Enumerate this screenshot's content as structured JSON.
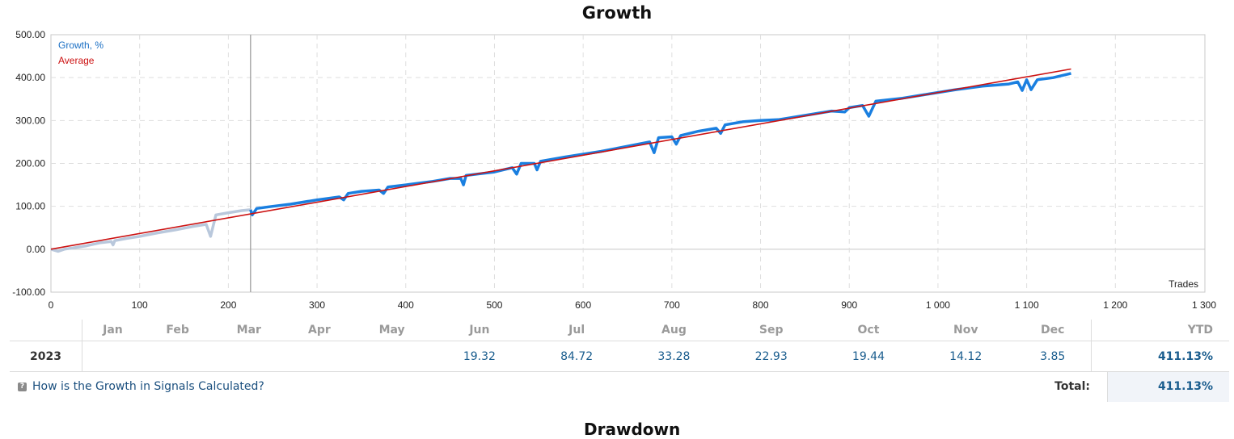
{
  "chart_data": {
    "type": "line",
    "title": "Growth",
    "xlabel": "Trades",
    "ylabel": "",
    "xlim": [
      0,
      1300
    ],
    "ylim": [
      -100,
      500
    ],
    "x_ticks": [
      0,
      100,
      200,
      300,
      400,
      500,
      600,
      700,
      800,
      900,
      1000,
      1100,
      1200,
      1300
    ],
    "x_tick_labels": [
      "0",
      "100",
      "200",
      "300",
      "400",
      "500",
      "600",
      "700",
      "800",
      "900",
      "1 000",
      "1 100",
      "1 200",
      "1 300"
    ],
    "y_ticks": [
      -100,
      0,
      100,
      200,
      300,
      400,
      500
    ],
    "y_tick_labels": [
      "-100.00",
      "0.00",
      "100.00",
      "200.00",
      "300.00",
      "400.00",
      "500.00"
    ],
    "grid": true,
    "legend_position": "top-left",
    "start_marker_x": 225,
    "series": [
      {
        "name": "Growth, %",
        "color": "#1a7fe0",
        "pre_signal_color": "#b9c8dc",
        "points": [
          [
            0,
            0
          ],
          [
            8,
            -5
          ],
          [
            15,
            0
          ],
          [
            25,
            3
          ],
          [
            40,
            8
          ],
          [
            55,
            15
          ],
          [
            68,
            18
          ],
          [
            70,
            10
          ],
          [
            72,
            20
          ],
          [
            85,
            25
          ],
          [
            100,
            30
          ],
          [
            120,
            38
          ],
          [
            140,
            45
          ],
          [
            160,
            53
          ],
          [
            175,
            58
          ],
          [
            180,
            30
          ],
          [
            186,
            80
          ],
          [
            200,
            85
          ],
          [
            215,
            90
          ],
          [
            225,
            92
          ],
          [
            227,
            80
          ],
          [
            232,
            95
          ],
          [
            250,
            100
          ],
          [
            270,
            105
          ],
          [
            300,
            115
          ],
          [
            325,
            122
          ],
          [
            330,
            115
          ],
          [
            335,
            130
          ],
          [
            350,
            135
          ],
          [
            370,
            138
          ],
          [
            375,
            130
          ],
          [
            380,
            145
          ],
          [
            400,
            150
          ],
          [
            430,
            158
          ],
          [
            450,
            165
          ],
          [
            462,
            165
          ],
          [
            465,
            150
          ],
          [
            468,
            172
          ],
          [
            480,
            175
          ],
          [
            500,
            180
          ],
          [
            520,
            190
          ],
          [
            525,
            175
          ],
          [
            530,
            200
          ],
          [
            545,
            200
          ],
          [
            548,
            185
          ],
          [
            552,
            205
          ],
          [
            580,
            215
          ],
          [
            620,
            228
          ],
          [
            650,
            240
          ],
          [
            675,
            250
          ],
          [
            680,
            225
          ],
          [
            685,
            260
          ],
          [
            700,
            262
          ],
          [
            705,
            245
          ],
          [
            710,
            265
          ],
          [
            730,
            275
          ],
          [
            750,
            282
          ],
          [
            755,
            270
          ],
          [
            760,
            290
          ],
          [
            780,
            297
          ],
          [
            800,
            300
          ],
          [
            820,
            302
          ],
          [
            850,
            312
          ],
          [
            880,
            322
          ],
          [
            895,
            320
          ],
          [
            900,
            330
          ],
          [
            915,
            335
          ],
          [
            922,
            310
          ],
          [
            930,
            345
          ],
          [
            960,
            352
          ],
          [
            990,
            362
          ],
          [
            1020,
            372
          ],
          [
            1050,
            380
          ],
          [
            1080,
            385
          ],
          [
            1090,
            390
          ],
          [
            1095,
            370
          ],
          [
            1100,
            395
          ],
          [
            1105,
            372
          ],
          [
            1112,
            395
          ],
          [
            1130,
            400
          ],
          [
            1150,
            410
          ]
        ]
      },
      {
        "name": "Average",
        "color": "#cc1111",
        "points": [
          [
            0,
            0
          ],
          [
            1150,
            420
          ]
        ]
      }
    ]
  },
  "table": {
    "months": [
      "Jan",
      "Feb",
      "Mar",
      "Apr",
      "May",
      "Jun",
      "Jul",
      "Aug",
      "Sep",
      "Oct",
      "Nov",
      "Dec"
    ],
    "ytd_label": "YTD",
    "year": "2023",
    "values": [
      "",
      "",
      "",
      "",
      "",
      "19.32",
      "84.72",
      "33.28",
      "22.93",
      "19.44",
      "14.12",
      "3.85"
    ],
    "ytd_value": "411.13%"
  },
  "footer": {
    "help_icon": "info-square-icon",
    "help_link": "How is the Growth in Signals Calculated?",
    "total_label": "Total:",
    "total_value": "411.13%"
  },
  "next_section_title": "Drawdown"
}
